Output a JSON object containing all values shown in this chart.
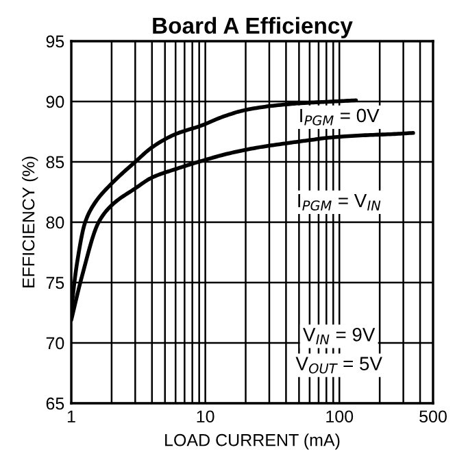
{
  "chart_data": {
    "type": "line",
    "title": "Board A Efficiency",
    "xlabel": "LOAD CURRENT (mA)",
    "ylabel": "EFFICIENCY (%)",
    "log": "x",
    "xlim": [
      1,
      500
    ],
    "ylim": [
      65,
      95
    ],
    "xticks": [
      1,
      10,
      100,
      500
    ],
    "yticks": [
      65,
      70,
      75,
      80,
      85,
      90,
      95
    ],
    "grid": true,
    "line_style": "solid",
    "marker": "none",
    "series": [
      {
        "color": "#000000",
        "x": [
          1.0,
          1.1,
          1.27,
          1.5,
          2,
          3,
          4,
          6,
          9.3,
          14,
          20,
          35,
          60,
          90,
          133
        ],
        "values": [
          72.8,
          76.5,
          80,
          81.6,
          83.2,
          85,
          86.2,
          87.3,
          88,
          88.8,
          89.3,
          89.7,
          89.9,
          90.0,
          90.1
        ]
      },
      {
        "color": "#000000",
        "x": [
          1.0,
          1.2,
          1.6,
          2,
          3,
          4,
          6,
          8.9,
          15,
          25,
          38,
          60,
          83,
          150,
          250,
          355
        ],
        "values": [
          71.9,
          75.5,
          80,
          81.4,
          82.8,
          83.7,
          84.4,
          85,
          85.7,
          86.2,
          86.5,
          86.8,
          87,
          87.2,
          87.3,
          87.4
        ]
      }
    ],
    "annotations": [
      "I$_{PGM}$ = 0V",
      "I$_{PGM}$ = V$_{IN}$",
      "V$_{IN}$ = 9V",
      "V$_{OUT}$ = 5V"
    ]
  }
}
